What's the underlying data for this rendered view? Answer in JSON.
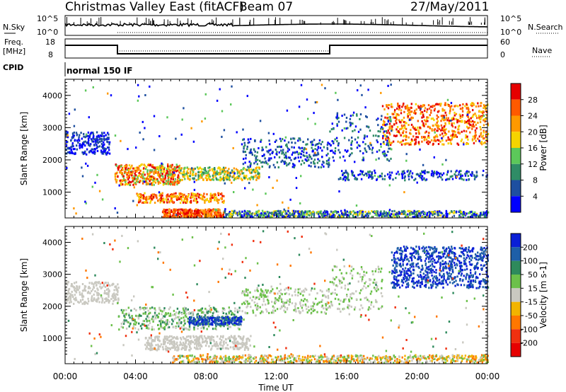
{
  "header": {
    "title": "Christmas Valley East (fitACF)",
    "beam": "Beam 07",
    "date": "27/May/2011"
  },
  "top_panels": {
    "nsky_label": "N.Sky",
    "nsearch_label": "N.Search",
    "nsky_ticks": [
      "10^5",
      "10^0"
    ],
    "nsky_right_ticks": [
      "10^5",
      "10^0"
    ],
    "freq_label_1": "Freq.",
    "freq_label_2": "[MHz]",
    "freq_ticks": [
      "18",
      "8"
    ],
    "nave_label": "Nave",
    "nave_ticks": [
      "60",
      "0"
    ],
    "cpid_label": "CPID",
    "cpid_value": "normal 150 IF"
  },
  "chart_data": [
    {
      "type": "heatmap",
      "ylabel": "Slant Range [km]",
      "xlabel": "Time UT",
      "x_ticks": [
        "00:00",
        "04:00",
        "08:00",
        "12:00",
        "16:00",
        "20:00",
        "00:00"
      ],
      "xlim_hours": [
        0,
        24
      ],
      "y_ticks": [
        1000,
        2000,
        3000,
        4000
      ],
      "ylim": [
        200,
        4500
      ],
      "colorbar": {
        "label": "Power [dB]",
        "ticks": [
          "4",
          "8",
          "12",
          "16",
          "20",
          "24",
          "28"
        ],
        "colors": [
          "#0000ff",
          "#1e4fa0",
          "#2f8c66",
          "#5cc85a",
          "#f5d400",
          "#ff9900",
          "#ff5a00",
          "#e60000"
        ]
      }
    },
    {
      "type": "heatmap",
      "ylabel": "Slant Range [km]",
      "xlabel": "Time UT",
      "x_ticks": [
        "00:00",
        "04:00",
        "08:00",
        "12:00",
        "16:00",
        "20:00",
        "00:00"
      ],
      "xlim_hours": [
        0,
        24
      ],
      "y_ticks": [
        1000,
        2000,
        3000,
        4000
      ],
      "ylim": [
        200,
        4500
      ],
      "colorbar": {
        "label": "Velocity [m s-1]",
        "ticks": [
          "200",
          "100",
          "50",
          "15",
          "-15",
          "-50",
          "-100",
          "-200"
        ],
        "colors": [
          "#0a1fd6",
          "#1e5fa8",
          "#2e8a5c",
          "#6cc04a",
          "#c9c8c0",
          "#f2b400",
          "#ff7700",
          "#f03010",
          "#e60000"
        ]
      }
    }
  ]
}
